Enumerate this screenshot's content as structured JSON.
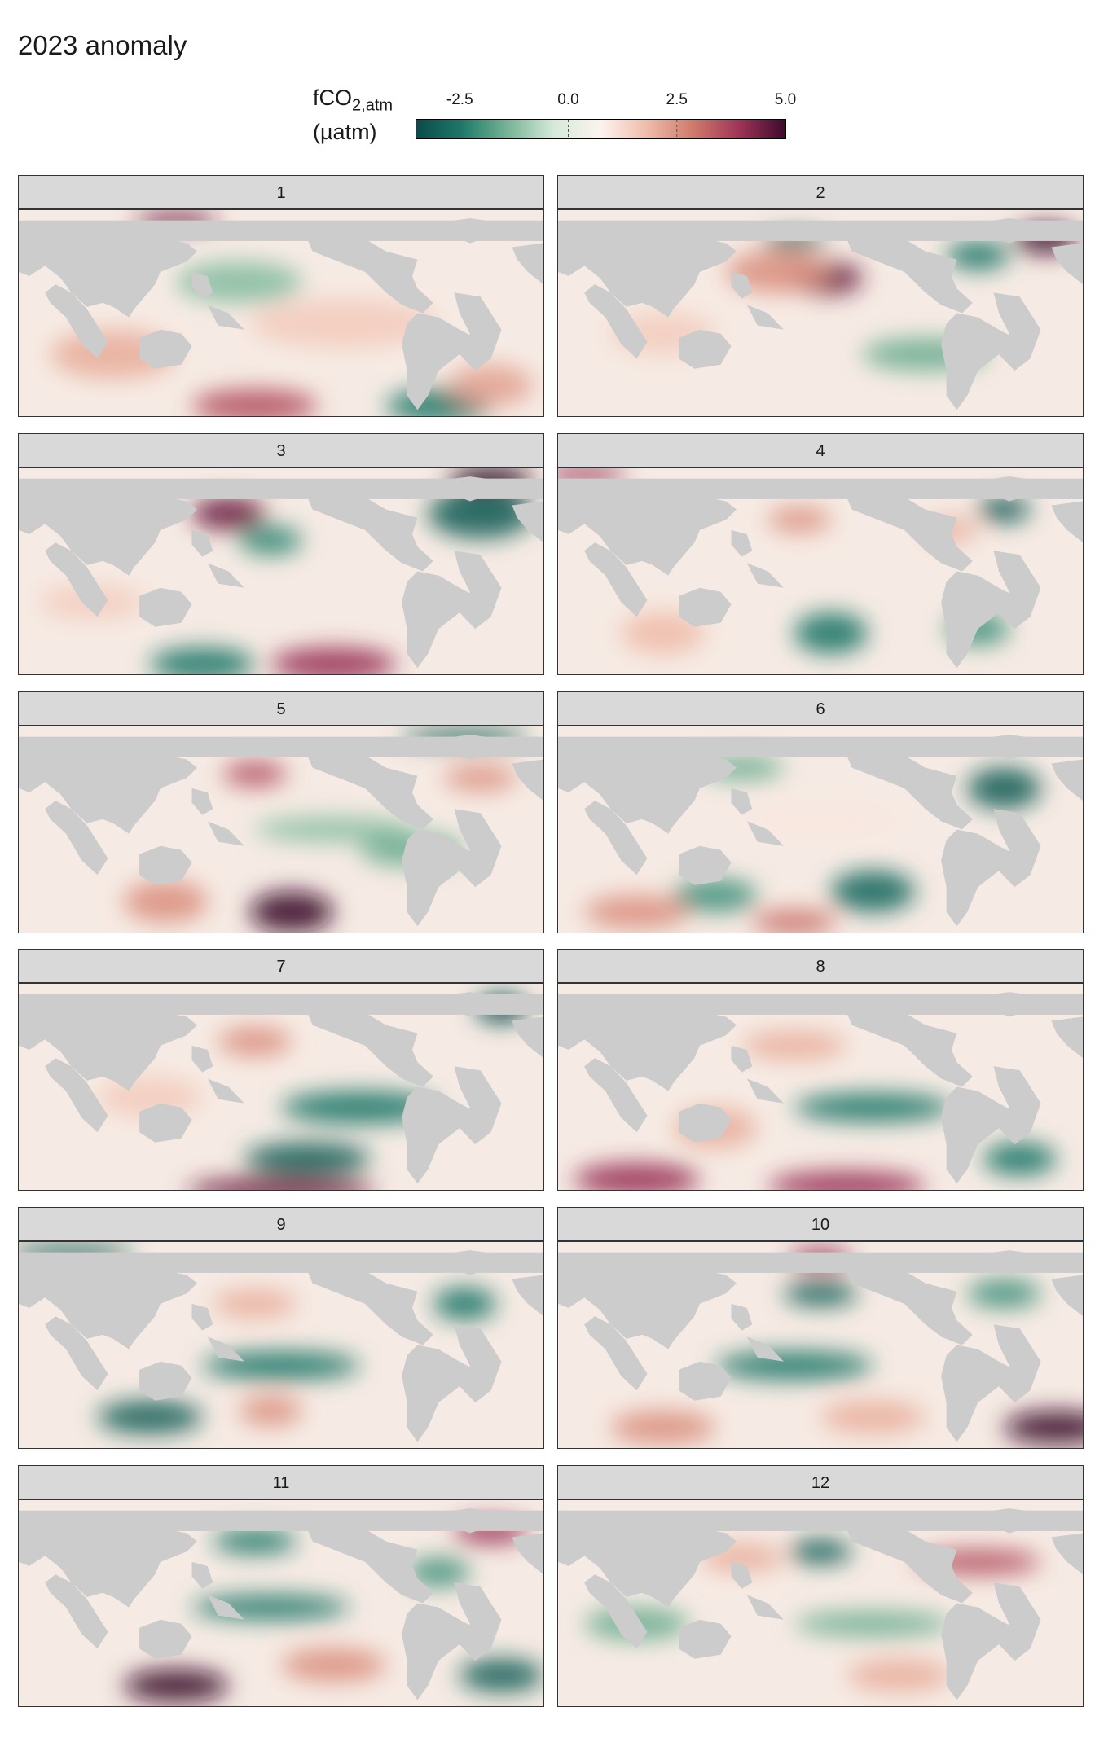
{
  "title": "2023 anomaly",
  "legend": {
    "label_main": "fCO",
    "label_sub": "2,atm",
    "label_unit": "(µatm)",
    "range": [
      -3.5,
      5.0
    ],
    "ticks": [
      "-2.5",
      "0.0",
      "2.5",
      "5.0"
    ],
    "tick_values": [
      -2.5,
      0.0,
      2.5,
      5.0
    ],
    "colors": [
      "#0b4a4a",
      "#1e7a6a",
      "#79b597",
      "#d7eadc",
      "#fdf3ee",
      "#efbcaa",
      "#cf7a6b",
      "#9e3458",
      "#3d0a2c"
    ]
  },
  "colors": {
    "land": "#cccccc",
    "strip": "#d9d9d9"
  },
  "panels": [
    {
      "label": "1",
      "blobs": [
        [
          0.62,
          0.55,
          0.18,
          0.12,
          1.5
        ],
        [
          0.42,
          0.35,
          0.12,
          0.1,
          -1.2
        ],
        [
          0.18,
          0.7,
          0.12,
          0.12,
          2
        ],
        [
          0.45,
          0.95,
          0.12,
          0.08,
          3.5
        ],
        [
          0.8,
          0.95,
          0.1,
          0.08,
          -2.5
        ],
        [
          0.9,
          0.85,
          0.08,
          0.1,
          2.2
        ],
        [
          0.3,
          0.05,
          0.08,
          0.04,
          4.5
        ]
      ]
    },
    {
      "label": "2",
      "blobs": [
        [
          0.51,
          0.33,
          0.07,
          0.08,
          4.5
        ],
        [
          0.42,
          0.3,
          0.1,
          0.1,
          2.5
        ],
        [
          0.93,
          0.14,
          0.06,
          0.07,
          5
        ],
        [
          0.8,
          0.22,
          0.06,
          0.07,
          -2.5
        ],
        [
          0.45,
          0.15,
          0.06,
          0.04,
          -3
        ],
        [
          0.2,
          0.6,
          0.1,
          0.1,
          1.5
        ],
        [
          0.7,
          0.7,
          0.12,
          0.08,
          -1.5
        ]
      ]
    },
    {
      "label": "3",
      "blobs": [
        [
          0.4,
          0.22,
          0.07,
          0.08,
          4.5
        ],
        [
          0.48,
          0.35,
          0.06,
          0.07,
          -2.2
        ],
        [
          0.88,
          0.22,
          0.1,
          0.12,
          -3
        ],
        [
          0.9,
          0.05,
          0.08,
          0.06,
          5
        ],
        [
          0.6,
          0.95,
          0.12,
          0.08,
          4
        ],
        [
          0.35,
          0.95,
          0.1,
          0.08,
          -2.5
        ],
        [
          0.14,
          0.65,
          0.1,
          0.08,
          1.5
        ]
      ]
    },
    {
      "label": "4",
      "blobs": [
        [
          0.46,
          0.25,
          0.06,
          0.06,
          2.5
        ],
        [
          0.85,
          0.2,
          0.05,
          0.06,
          -3.2
        ],
        [
          0.2,
          0.8,
          0.08,
          0.1,
          1.8
        ],
        [
          0.52,
          0.8,
          0.07,
          0.1,
          -2.5
        ],
        [
          0.8,
          0.78,
          0.06,
          0.08,
          -2
        ],
        [
          0.05,
          0.03,
          0.08,
          0.04,
          4
        ],
        [
          0.75,
          0.3,
          0.05,
          0.06,
          2
        ]
      ]
    },
    {
      "label": "5",
      "blobs": [
        [
          0.45,
          0.23,
          0.06,
          0.06,
          3.5
        ],
        [
          0.52,
          0.9,
          0.08,
          0.1,
          5
        ],
        [
          0.28,
          0.85,
          0.08,
          0.1,
          2.5
        ],
        [
          0.88,
          0.25,
          0.07,
          0.06,
          2.5
        ],
        [
          0.6,
          0.5,
          0.15,
          0.06,
          -1.2
        ],
        [
          0.75,
          0.6,
          0.1,
          0.08,
          -1.5
        ],
        [
          0.85,
          0.05,
          0.12,
          0.04,
          -3
        ]
      ]
    },
    {
      "label": "6",
      "blobs": [
        [
          0.85,
          0.3,
          0.07,
          0.1,
          -3
        ],
        [
          0.35,
          0.2,
          0.08,
          0.06,
          -1.5
        ],
        [
          0.6,
          0.8,
          0.08,
          0.1,
          -2.8
        ],
        [
          0.3,
          0.82,
          0.08,
          0.08,
          -2
        ],
        [
          0.15,
          0.9,
          0.1,
          0.08,
          2.5
        ],
        [
          0.45,
          0.95,
          0.08,
          0.06,
          3
        ],
        [
          0.5,
          0.45,
          0.15,
          0.06,
          1
        ]
      ]
    },
    {
      "label": "7",
      "blobs": [
        [
          0.45,
          0.28,
          0.07,
          0.07,
          2.5
        ],
        [
          0.65,
          0.6,
          0.15,
          0.08,
          -2.5
        ],
        [
          0.55,
          0.85,
          0.12,
          0.08,
          -3
        ],
        [
          0.92,
          0.12,
          0.05,
          0.07,
          -3.5
        ],
        [
          0.25,
          0.55,
          0.1,
          0.1,
          1.5
        ],
        [
          0.5,
          1.0,
          0.18,
          0.06,
          4.5
        ]
      ]
    },
    {
      "label": "8",
      "blobs": [
        [
          0.45,
          0.3,
          0.1,
          0.07,
          2
        ],
        [
          0.6,
          0.6,
          0.15,
          0.07,
          -2.5
        ],
        [
          0.3,
          0.7,
          0.08,
          0.1,
          2
        ],
        [
          0.15,
          0.95,
          0.12,
          0.08,
          4
        ],
        [
          0.55,
          0.98,
          0.15,
          0.07,
          4
        ],
        [
          0.88,
          0.85,
          0.07,
          0.08,
          -2.5
        ]
      ]
    },
    {
      "label": "9",
      "blobs": [
        [
          0.45,
          0.3,
          0.08,
          0.07,
          2
        ],
        [
          0.5,
          0.6,
          0.15,
          0.07,
          -2.5
        ],
        [
          0.25,
          0.85,
          0.1,
          0.08,
          -3
        ],
        [
          0.85,
          0.3,
          0.06,
          0.08,
          -2.5
        ],
        [
          0.48,
          0.82,
          0.06,
          0.07,
          2.5
        ],
        [
          0.1,
          0.05,
          0.12,
          0.04,
          -3
        ]
      ]
    },
    {
      "label": "10",
      "blobs": [
        [
          0.5,
          0.25,
          0.07,
          0.06,
          -3
        ],
        [
          0.5,
          0.08,
          0.06,
          0.05,
          4
        ],
        [
          0.45,
          0.6,
          0.15,
          0.07,
          -2.5
        ],
        [
          0.95,
          0.9,
          0.1,
          0.08,
          5
        ],
        [
          0.2,
          0.9,
          0.1,
          0.08,
          2.5
        ],
        [
          0.6,
          0.85,
          0.1,
          0.08,
          2
        ],
        [
          0.85,
          0.25,
          0.07,
          0.07,
          -2
        ]
      ]
    },
    {
      "label": "11",
      "blobs": [
        [
          0.3,
          0.9,
          0.1,
          0.08,
          5
        ],
        [
          0.48,
          0.52,
          0.15,
          0.06,
          -2.5
        ],
        [
          0.45,
          0.2,
          0.08,
          0.06,
          -2.5
        ],
        [
          0.9,
          0.15,
          0.07,
          0.06,
          4
        ],
        [
          0.92,
          0.85,
          0.08,
          0.08,
          -3
        ],
        [
          0.8,
          0.35,
          0.06,
          0.07,
          -2
        ],
        [
          0.6,
          0.8,
          0.1,
          0.08,
          2.5
        ]
      ]
    },
    {
      "label": "12",
      "blobs": [
        [
          0.5,
          0.25,
          0.06,
          0.06,
          -3
        ],
        [
          0.35,
          0.28,
          0.08,
          0.07,
          2
        ],
        [
          0.8,
          0.3,
          0.12,
          0.06,
          3.5
        ],
        [
          0.6,
          0.6,
          0.15,
          0.06,
          -1.5
        ],
        [
          0.15,
          0.6,
          0.1,
          0.08,
          -1.5
        ],
        [
          0.65,
          0.85,
          0.1,
          0.08,
          2
        ]
      ]
    }
  ]
}
